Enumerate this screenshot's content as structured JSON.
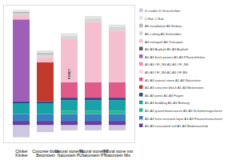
{
  "chart_data": {
    "type": "bar",
    "stacked": true,
    "tick_labels": "x",
    "legend": "right",
    "categories": [
      "Clinker\nKlinker",
      "Concrete block\nBetonstein",
      "Natural stone PL\nNaturstein PL",
      "Natural stone PT\nNaturstein PT",
      "Natural stone mix\nNaturstein Mix"
    ],
    "ylim": [
      -20,
      140
    ],
    "yticks": [],
    "annotations": [
      "PENET"
    ],
    "series": [
      {
        "name": "D credits D Gutschriften",
        "color": "#cfc6e0",
        "values": [
          -14,
          -8,
          -6,
          -6,
          -6
        ]
      },
      {
        "name": "C EoL C EoL",
        "color": "#e3e3e3",
        "values": [
          2,
          3,
          3,
          3,
          3
        ]
      },
      {
        "name": "A5 installation A5 Einbau",
        "color": "#b9b9b9",
        "values": [
          2,
          2,
          0,
          0,
          0
        ]
      },
      {
        "name": "A5 cutting A5 Schneiden",
        "color": "#d6d6d6",
        "values": [
          2,
          3,
          4,
          4,
          4
        ]
      },
      {
        "name": "A4 transport A4 Transport",
        "color": "#f6bfd0",
        "values": [
          5,
          6,
          50,
          70,
          60
        ]
      },
      {
        "name": "A1-A3 Asphalt A1-A3 Asphalt",
        "color": "#5a5a5a",
        "values": [
          0,
          0,
          0,
          0,
          0
        ]
      },
      {
        "name": "A1-A3 brick pavers A1-A3 Pflasterklinker",
        "color": "#9e5fb7",
        "values": [
          95,
          0,
          0,
          0,
          0
        ]
      },
      {
        "name": "A1-A3 OF_NS A1-A3 OF_NS",
        "color": "#f08bab",
        "values": [
          0,
          0,
          0,
          0,
          0
        ]
      },
      {
        "name": "A1-A3 OF_BS A1-A3 OF-BS",
        "color": "#f9d5df",
        "values": [
          0,
          0,
          0,
          0,
          0
        ]
      },
      {
        "name": "A1-A3 natural stone A1-A3 Naturstein",
        "color": "#e05a8a",
        "values": [
          0,
          0,
          18,
          18,
          18
        ]
      },
      {
        "name": "A1-A3 concrete block A1-A3 Betonstein",
        "color": "#c0392b",
        "values": [
          0,
          45,
          0,
          0,
          0
        ]
      },
      {
        "name": "A1-A3 joints A1-A3 Fugen",
        "color": "#2e4a8a",
        "values": [
          3,
          3,
          3,
          3,
          3
        ]
      },
      {
        "name": "A1-A3 bedding A1-A3 Bettung",
        "color": "#17a2a8",
        "values": [
          12,
          12,
          12,
          12,
          12
        ]
      },
      {
        "name": "A1-A3 gravel basecourse A1-A3 Schottertragschicht",
        "color": "#2bb596",
        "values": [
          0,
          0,
          4,
          4,
          4
        ]
      },
      {
        "name": "A1-A3 frost-resistant layer A1-A3 Frostschutzschicht",
        "color": "#3a7fc1",
        "values": [
          8,
          8,
          8,
          8,
          8
        ]
      },
      {
        "name": "A1-A3 excavated soil A1-A3 Bodenaushub",
        "color": "#6a3d9a",
        "values": [
          5,
          5,
          5,
          5,
          5
        ]
      }
    ]
  }
}
